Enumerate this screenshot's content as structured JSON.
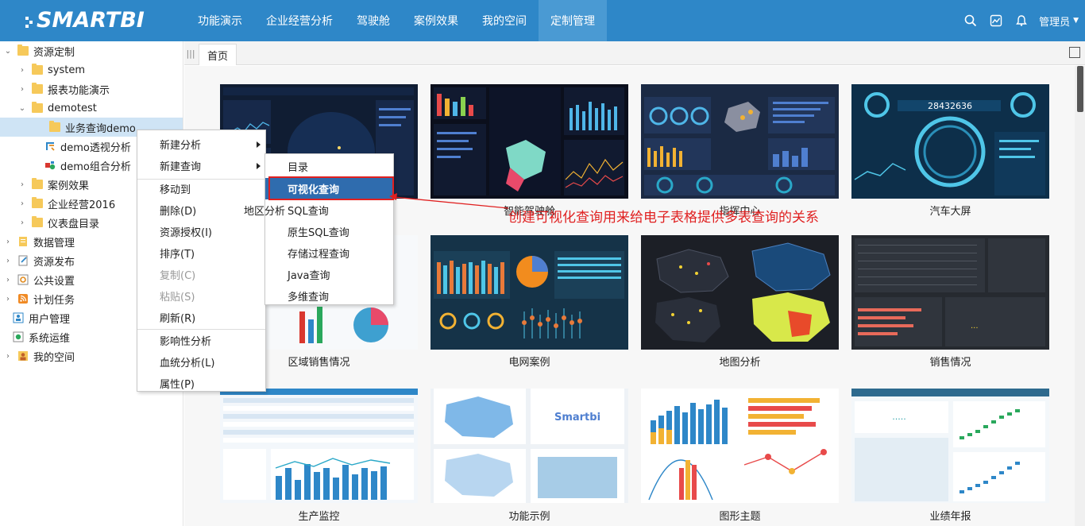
{
  "brand": {
    "name": "SMARTBI",
    "accent": "#2e87c8"
  },
  "nav": [
    "功能演示",
    "企业经营分析",
    "驾驶舱",
    "案例效果",
    "我的空间",
    "定制管理"
  ],
  "nav_active": "定制管理",
  "topright": {
    "user": "管理员",
    "icons": [
      "search-icon",
      "chart-icon",
      "bell-icon"
    ]
  },
  "tree": {
    "root": "资源定制",
    "items": [
      {
        "label": "system"
      },
      {
        "label": "报表功能演示"
      },
      {
        "label": "demotest"
      },
      {
        "label": "业务查询demo"
      },
      {
        "label": "demo透视分析"
      },
      {
        "label": "demo组合分析"
      },
      {
        "label": "案例效果"
      },
      {
        "label": "企业经营2016"
      },
      {
        "label": "仪表盘目录"
      }
    ],
    "top_level": [
      "数据管理",
      "资源发布",
      "公共设置",
      "计划任务",
      "用户管理",
      "系统运维",
      "我的空间"
    ]
  },
  "tabs": {
    "home": "首页"
  },
  "cards": [
    {
      "label": "地区分析"
    },
    {
      "label": "智能驾驶舱"
    },
    {
      "label": "指挥中心"
    },
    {
      "label": "汽车大屏"
    },
    {
      "label": "区域销售情况"
    },
    {
      "label": "电网案例"
    },
    {
      "label": "地图分析"
    },
    {
      "label": "销售情况"
    },
    {
      "label": "生产监控"
    },
    {
      "label": "功能示例"
    },
    {
      "label": "图形主题"
    },
    {
      "label": "业绩年报"
    }
  ],
  "context_menu": {
    "items": [
      "新建分析",
      "新建查询",
      "移动到",
      "删除(D)",
      "资源授权(I)",
      "排序(T)",
      "复制(C)",
      "粘贴(S)",
      "刷新(R)",
      "影响性分析",
      "血统分析(L)",
      "属性(P)"
    ]
  },
  "submenu": {
    "items": [
      "目录",
      "可视化查询",
      "SQL查询",
      "原生SQL查询",
      "存储过程查询",
      "Java查询",
      "多维查询"
    ]
  },
  "annotation": "创建可视化查询用来给电子表格提供多表查询的关系",
  "badge_texts": {
    "dashboard_number": "28432636"
  }
}
